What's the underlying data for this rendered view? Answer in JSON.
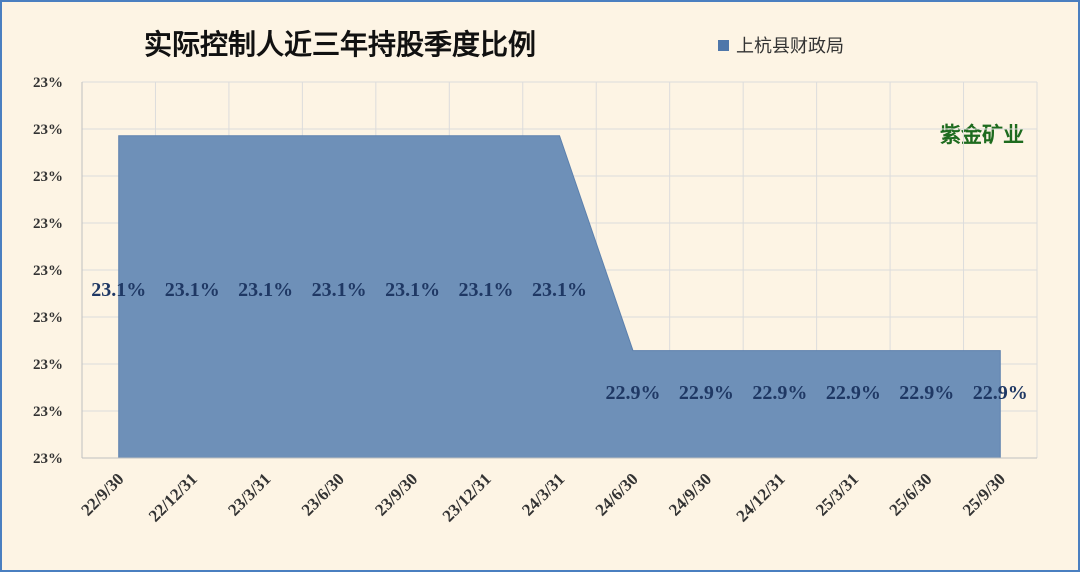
{
  "chart_data": {
    "type": "area",
    "title": "实际控制人近三年持股季度比例",
    "annotation": "紫金矿业",
    "legend_position": "top-right",
    "grid": true,
    "categories": [
      "22/9/30",
      "22/12/31",
      "23/3/31",
      "23/6/30",
      "23/9/30",
      "23/12/31",
      "24/3/31",
      "24/6/30",
      "24/9/30",
      "24/12/31",
      "25/3/31",
      "25/6/30",
      "25/9/30"
    ],
    "series": [
      {
        "name": "上杭县财政局",
        "values": [
          23.1,
          23.1,
          23.1,
          23.1,
          23.1,
          23.1,
          23.1,
          22.9,
          22.9,
          22.9,
          22.9,
          22.9,
          22.9
        ],
        "labels": [
          "23.1%",
          "23.1%",
          "23.1%",
          "23.1%",
          "23.1%",
          "23.1%",
          "23.1%",
          "22.9%",
          "22.9%",
          "22.9%",
          "22.9%",
          "22.9%",
          "22.9%"
        ]
      }
    ],
    "y_ticks": [
      "23%",
      "23%",
      "23%",
      "23%",
      "23%",
      "23%",
      "23%",
      "23%",
      "23%"
    ],
    "ylim": [
      22.8,
      23.15
    ],
    "colors": {
      "area": "#6e90b8",
      "area_edge": "#5c80ad",
      "legend_marker": "#4f77aa",
      "border": "#4a7fc0",
      "background": "#fdf4e4",
      "grid": "#dcdcdc",
      "annotation": "#1e6b1e",
      "data_label": "#1f3864"
    }
  }
}
